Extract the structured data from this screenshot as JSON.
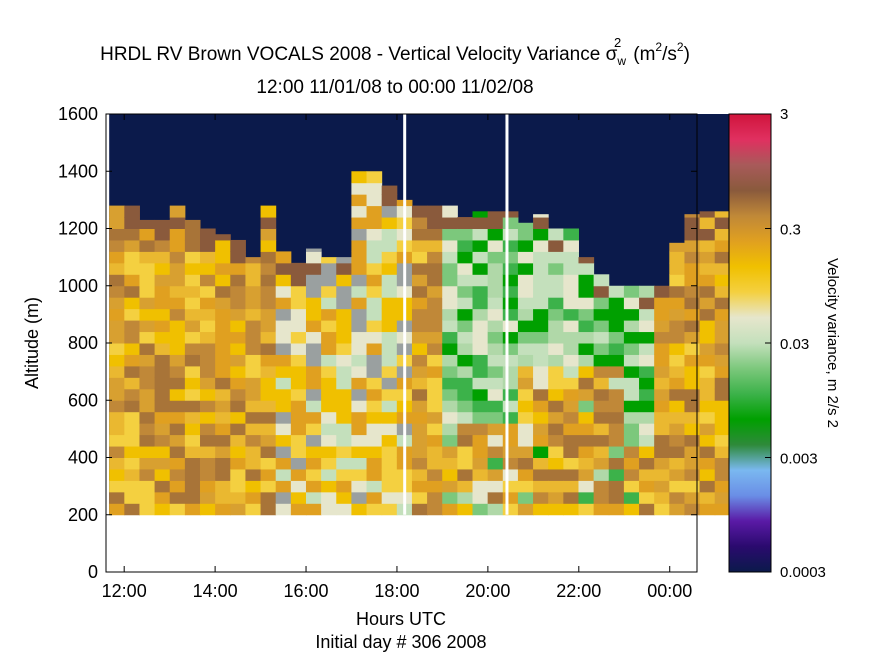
{
  "title_line1_prefix": "HRDL RV Brown VOCALS 2008 - Vertical Velocity Variance",
  "title_symbol": "σ",
  "title_symbol_sub": "w",
  "title_symbol_sup": "2",
  "title_units": "(m",
  "title_units_sup": "2",
  "title_units_end": "/s",
  "title_units_end_sup": "2",
  "title_units_close": ")",
  "title_line2": "12:00 11/01/08 to 00:00 11/02/08",
  "colors": {
    "background_top": "#0b1a4b",
    "gap_lines": "#ffffff",
    "colormap": [
      "#0b1a4b",
      "#2a0a6e",
      "#5a1aa6",
      "#6a8ee6",
      "#7ab8f0",
      "#2e8a3a",
      "#00a000",
      "#3cb24a",
      "#7cc87c",
      "#c4e0bc",
      "#e6e6cc",
      "#f4d040",
      "#f0c000",
      "#e0a020",
      "#c08838",
      "#8a5a3c",
      "#a85a5a",
      "#e03060",
      "#d0143c"
    ]
  },
  "chart_data": {
    "type": "heatmap",
    "title": "HRDL RV Brown VOCALS 2008 - Vertical Velocity Variance σw2 (m2/s2)",
    "subtitle": "12:00 11/01/08 to 00:00 11/02/08",
    "xlabel": "Hours UTC",
    "xlabel2": "Initial day # 306  2008",
    "ylabel": "Altitude (m)",
    "colorbar_label": "Velocity variance, m 2/s 2",
    "x_ticks": [
      "12:00",
      "14:00",
      "16:00",
      "18:00",
      "20:00",
      "22:00",
      "00:00"
    ],
    "x_tick_hours": [
      12,
      14,
      16,
      18,
      20,
      22,
      24
    ],
    "xlim": [
      11.6,
      24.6
    ],
    "y_ticks": [
      "0",
      "200",
      "400",
      "600",
      "800",
      "1000",
      "1200",
      "1400",
      "1600"
    ],
    "y_tick_values": [
      0,
      200,
      400,
      600,
      800,
      1000,
      1200,
      1400,
      1600
    ],
    "ylim": [
      0,
      1600
    ],
    "colorbar_ticks": [
      "0.0003",
      "0.003",
      "0.03",
      "0.3",
      "3"
    ],
    "colorbar_values": [
      0.0003,
      0.003,
      0.03,
      0.3,
      3
    ],
    "color_scale": "log",
    "data_altitude_range": [
      200,
      1600
    ],
    "time_start_hour": 11.67,
    "time_step_hours": 0.333,
    "gap_hours": [
      18.17,
      20.42
    ],
    "bl_top_m": [
      1280,
      1280,
      1230,
      1230,
      1280,
      1230,
      1200,
      1180,
      1160,
      1100,
      1280,
      1120,
      1080,
      1130,
      1100,
      1100,
      1400,
      1400,
      1350,
      1300,
      1280,
      1280,
      1280,
      1240,
      1260,
      1260,
      1260,
      1220,
      1250,
      1200,
      1200,
      1100,
      1040,
      1000,
      1000,
      1000,
      1000,
      1150,
      1250,
      1260,
      1260
    ]
  }
}
